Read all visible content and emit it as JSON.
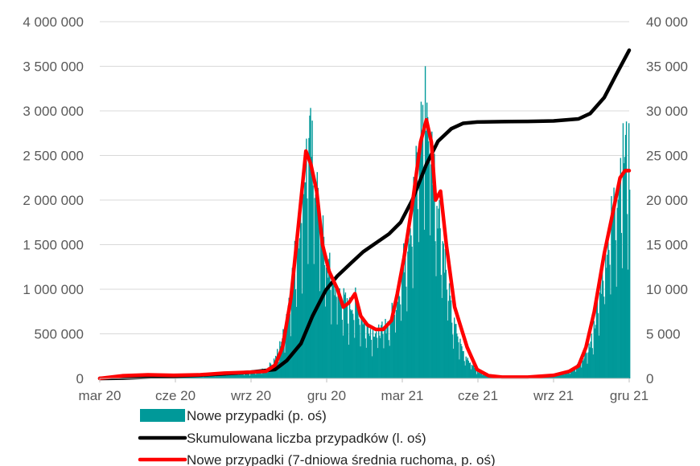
{
  "chart_data": {
    "type": "bar+line",
    "title": "",
    "x_tick_labels": [
      "mar 20",
      "cze 20",
      "wrz 20",
      "gru 20",
      "mar 21",
      "cze 21",
      "wrz 21",
      "gru 21"
    ],
    "y_left": {
      "range": [
        0,
        4000000
      ],
      "tick_labels": [
        "0",
        "500 000",
        "1 000 000",
        "1 500 000",
        "2 000 000",
        "2 500 000",
        "3 000 000",
        "3 500 000",
        "4 000 000"
      ]
    },
    "y_right": {
      "range": [
        0,
        40000
      ],
      "tick_labels": [
        "0",
        "5 000",
        "10 000",
        "15 000",
        "20 000",
        "25 000",
        "30 000",
        "35 000",
        "40 000"
      ]
    },
    "grid": "horizontal",
    "legend_position": "bottom",
    "date_range": [
      "2020-03-04",
      "2021-12-01"
    ],
    "series": [
      {
        "name": "Nowe przypadki (p. oś)",
        "kind": "bar",
        "axis": "right",
        "color": "#009999",
        "points": [
          [
            "2020-03-04",
            0
          ],
          [
            "2020-04-01",
            400
          ],
          [
            "2020-05-01",
            350
          ],
          [
            "2020-06-01",
            380
          ],
          [
            "2020-07-01",
            300
          ],
          [
            "2020-08-01",
            700
          ],
          [
            "2020-09-01",
            600
          ],
          [
            "2020-09-20",
            1100
          ],
          [
            "2020-10-01",
            2400
          ],
          [
            "2020-10-10",
            5000
          ],
          [
            "2020-10-20",
            11000
          ],
          [
            "2020-10-31",
            19000
          ],
          [
            "2020-11-07",
            25500
          ],
          [
            "2020-11-12",
            27000
          ],
          [
            "2020-11-20",
            22000
          ],
          [
            "2020-11-30",
            14000
          ],
          [
            "2020-12-10",
            11000
          ],
          [
            "2020-12-20",
            9500
          ],
          [
            "2020-12-27",
            8000
          ],
          [
            "2021-01-05",
            9000
          ],
          [
            "2021-01-15",
            6500
          ],
          [
            "2021-01-25",
            5500
          ],
          [
            "2021-02-05",
            5500
          ],
          [
            "2021-02-15",
            6500
          ],
          [
            "2021-02-25",
            10000
          ],
          [
            "2021-03-05",
            14000
          ],
          [
            "2021-03-15",
            20000
          ],
          [
            "2021-03-25",
            29000
          ],
          [
            "2021-03-31",
            32500
          ],
          [
            "2021-04-05",
            28000
          ],
          [
            "2021-04-12",
            22000
          ],
          [
            "2021-04-20",
            16000
          ],
          [
            "2021-05-01",
            7000
          ],
          [
            "2021-05-15",
            3000
          ],
          [
            "2021-06-01",
            800
          ],
          [
            "2021-07-01",
            150
          ],
          [
            "2021-08-01",
            200
          ],
          [
            "2021-09-01",
            400
          ],
          [
            "2021-09-20",
            900
          ],
          [
            "2021-10-01",
            1600
          ],
          [
            "2021-10-15",
            4000
          ],
          [
            "2021-10-25",
            9000
          ],
          [
            "2021-11-01",
            14000
          ],
          [
            "2021-11-10",
            19000
          ],
          [
            "2021-11-20",
            24500
          ],
          [
            "2021-11-26",
            26500
          ],
          [
            "2021-12-01",
            25000
          ]
        ]
      },
      {
        "name": "Skumulowana liczba przypadków (l. oś)",
        "kind": "line",
        "axis": "left",
        "color": "#000000",
        "points": [
          [
            "2020-03-04",
            0
          ],
          [
            "2020-04-01",
            3000
          ],
          [
            "2020-05-01",
            15000
          ],
          [
            "2020-06-01",
            25000
          ],
          [
            "2020-07-01",
            36000
          ],
          [
            "2020-08-01",
            52000
          ],
          [
            "2020-09-01",
            70000
          ],
          [
            "2020-10-01",
            100000
          ],
          [
            "2020-10-15",
            200000
          ],
          [
            "2020-11-01",
            390000
          ],
          [
            "2020-11-15",
            700000
          ],
          [
            "2020-12-01",
            990000
          ],
          [
            "2020-12-15",
            1150000
          ],
          [
            "2021-01-01",
            1300000
          ],
          [
            "2021-01-15",
            1420000
          ],
          [
            "2021-02-01",
            1530000
          ],
          [
            "2021-02-15",
            1620000
          ],
          [
            "2021-03-01",
            1750000
          ],
          [
            "2021-03-15",
            2000000
          ],
          [
            "2021-04-01",
            2400000
          ],
          [
            "2021-04-15",
            2660000
          ],
          [
            "2021-05-01",
            2800000
          ],
          [
            "2021-05-15",
            2860000
          ],
          [
            "2021-06-01",
            2875000
          ],
          [
            "2021-07-01",
            2880000
          ],
          [
            "2021-08-01",
            2882000
          ],
          [
            "2021-09-01",
            2887000
          ],
          [
            "2021-10-01",
            2910000
          ],
          [
            "2021-10-15",
            2970000
          ],
          [
            "2021-11-01",
            3150000
          ],
          [
            "2021-11-15",
            3400000
          ],
          [
            "2021-12-01",
            3680000
          ]
        ]
      },
      {
        "name": "Nowe przypadki (7-dniowa średnia ruchoma, p. oś)",
        "kind": "line",
        "axis": "right",
        "color": "#ff0000",
        "points": [
          [
            "2020-03-04",
            0
          ],
          [
            "2020-04-01",
            300
          ],
          [
            "2020-05-01",
            400
          ],
          [
            "2020-06-01",
            350
          ],
          [
            "2020-07-01",
            400
          ],
          [
            "2020-08-01",
            600
          ],
          [
            "2020-09-01",
            700
          ],
          [
            "2020-09-20",
            800
          ],
          [
            "2020-10-01",
            1500
          ],
          [
            "2020-10-10",
            3500
          ],
          [
            "2020-10-20",
            9000
          ],
          [
            "2020-10-31",
            19000
          ],
          [
            "2020-11-07",
            25500
          ],
          [
            "2020-11-13",
            24000
          ],
          [
            "2020-11-20",
            21000
          ],
          [
            "2020-11-27",
            15000
          ],
          [
            "2020-12-05",
            12000
          ],
          [
            "2020-12-15",
            10000
          ],
          [
            "2020-12-22",
            8000
          ],
          [
            "2020-12-29",
            8500
          ],
          [
            "2021-01-05",
            9500
          ],
          [
            "2021-01-12",
            7000
          ],
          [
            "2021-01-20",
            6000
          ],
          [
            "2021-01-30",
            5500
          ],
          [
            "2021-02-08",
            5500
          ],
          [
            "2021-02-18",
            6500
          ],
          [
            "2021-02-25",
            9500
          ],
          [
            "2021-03-05",
            13500
          ],
          [
            "2021-03-15",
            19500
          ],
          [
            "2021-03-25",
            26500
          ],
          [
            "2021-04-01",
            29000
          ],
          [
            "2021-04-07",
            26500
          ],
          [
            "2021-04-12",
            20000
          ],
          [
            "2021-04-18",
            21000
          ],
          [
            "2021-04-25",
            15000
          ],
          [
            "2021-05-05",
            8000
          ],
          [
            "2021-05-20",
            3500
          ],
          [
            "2021-06-01",
            1000
          ],
          [
            "2021-06-15",
            300
          ],
          [
            "2021-07-01",
            150
          ],
          [
            "2021-08-01",
            150
          ],
          [
            "2021-09-01",
            350
          ],
          [
            "2021-09-20",
            800
          ],
          [
            "2021-10-01",
            1400
          ],
          [
            "2021-10-10",
            3500
          ],
          [
            "2021-10-20",
            7500
          ],
          [
            "2021-11-01",
            14000
          ],
          [
            "2021-11-10",
            18000
          ],
          [
            "2021-11-20",
            22500
          ],
          [
            "2021-11-26",
            23300
          ],
          [
            "2021-12-01",
            23300
          ]
        ]
      }
    ]
  }
}
